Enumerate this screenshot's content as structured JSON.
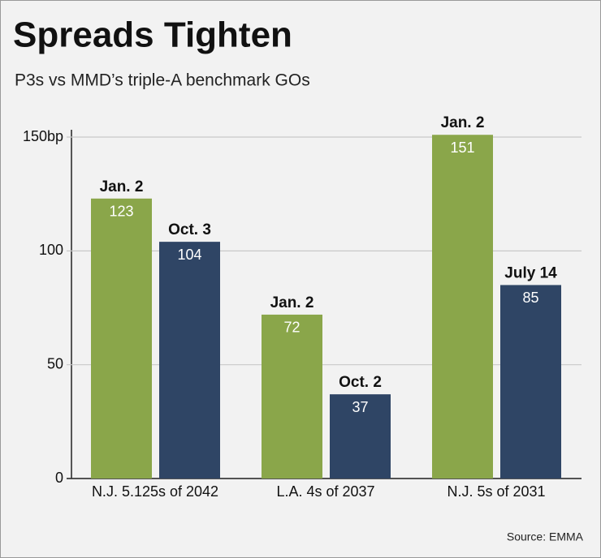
{
  "chart_data": {
    "type": "bar",
    "title": "Spreads Tighten",
    "subtitle": "P3s vs MMD’s triple-A benchmark GOs",
    "source": "Source: EMMA",
    "categories": [
      "N.J. 5.125s of 2042",
      "L.A. 4s of 2037",
      "N.J. 5s of 2031"
    ],
    "series": [
      {
        "color": "#8aa64a",
        "values": [
          123,
          72,
          151
        ],
        "labels": [
          "Jan. 2",
          "Jan. 2",
          "Jan. 2"
        ]
      },
      {
        "color": "#2f4565",
        "values": [
          104,
          37,
          85
        ],
        "labels": [
          "Oct. 3",
          "Oct. 2",
          "July 14"
        ]
      }
    ],
    "ylim": [
      0,
      155
    ],
    "yticks": [
      0,
      50,
      100,
      {
        "value": 150,
        "label": "150bp"
      }
    ],
    "grid": true
  }
}
